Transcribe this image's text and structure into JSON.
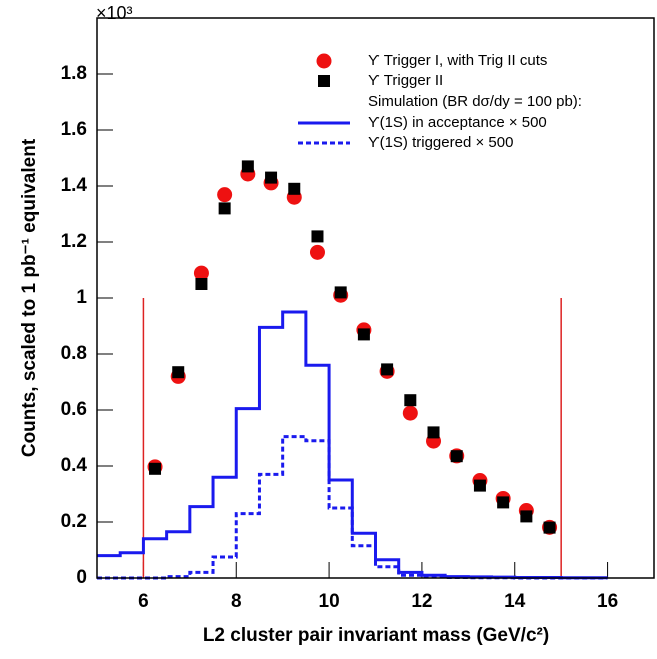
{
  "chart_data": {
    "type": "scatter",
    "multiplier": "×10³",
    "x_label": "L2 cluster pair invariant mass (GeV/c²)",
    "y_label": "Counts, scaled to 1 pb⁻¹ equivalent",
    "xlim": [
      5,
      17
    ],
    "xticks": [
      6,
      8,
      10,
      12,
      14,
      16
    ],
    "ylim": [
      0,
      2
    ],
    "yticks": [
      0,
      0.2,
      0.4,
      0.6,
      0.8,
      1,
      1.2,
      1.4,
      1.6,
      1.8
    ],
    "legend_heading": "Simulation (BR dσ/dy = 100 pb):",
    "series": [
      {
        "name": "ϒ Trigger I, with Trig II cuts",
        "style": "circle",
        "color": "#ee1111",
        "x": [
          6.25,
          6.75,
          7.25,
          7.75,
          8.25,
          8.75,
          9.25,
          9.75,
          10.25,
          10.75,
          11.25,
          11.75,
          12.25,
          12.75,
          13.25,
          13.75,
          14.25,
          14.75
        ],
        "values": [
          0.397,
          0.72,
          1.089,
          1.369,
          1.443,
          1.411,
          1.36,
          1.163,
          1.01,
          0.886,
          0.738,
          0.589,
          0.489,
          0.436,
          0.348,
          0.284,
          0.241,
          0.181
        ]
      },
      {
        "name": "ϒ Trigger II",
        "style": "square",
        "color": "#000000",
        "x": [
          6.25,
          6.75,
          7.25,
          7.75,
          8.25,
          8.75,
          9.25,
          9.75,
          10.25,
          10.75,
          11.25,
          11.75,
          12.25,
          12.75,
          13.25,
          13.75,
          14.25,
          14.75
        ],
        "values": [
          0.39,
          0.735,
          1.05,
          1.32,
          1.47,
          1.43,
          1.39,
          1.22,
          1.02,
          0.87,
          0.745,
          0.635,
          0.52,
          0.435,
          0.33,
          0.27,
          0.22,
          0.18
        ]
      },
      {
        "name": "ϒ(1S) in acceptance × 500",
        "style": "step",
        "dash": false,
        "color": "#1a1aee",
        "bins": [
          5,
          5.5,
          6,
          6.5,
          7,
          7.5,
          8,
          8.5,
          9,
          9.5,
          10,
          10.5,
          11,
          11.5,
          12,
          12.5,
          13,
          13.5,
          14,
          14.5,
          15,
          15.5,
          16
        ],
        "values": [
          0.08,
          0.09,
          0.14,
          0.165,
          0.255,
          0.36,
          0.605,
          0.895,
          0.95,
          0.76,
          0.35,
          0.16,
          0.065,
          0.02,
          0.01,
          0.005,
          0.004,
          0.003,
          0.002,
          0.002,
          0.001,
          0.001
        ]
      },
      {
        "name": "ϒ(1S) triggered × 500",
        "style": "step",
        "dash": true,
        "color": "#1a1aee",
        "bins": [
          5,
          5.5,
          6,
          6.5,
          7,
          7.5,
          8,
          8.5,
          9,
          9.5,
          10,
          10.5,
          11,
          11.5,
          12,
          12.5,
          13,
          13.5,
          14,
          14.5,
          15,
          15.5,
          16
        ],
        "values": [
          0,
          0,
          0,
          0.005,
          0.02,
          0.075,
          0.23,
          0.37,
          0.505,
          0.49,
          0.25,
          0.115,
          0.04,
          0.01,
          0.005,
          0.002,
          0.001,
          0.001,
          0,
          0,
          0,
          0
        ]
      }
    ],
    "vlines": [
      {
        "x": 6,
        "top": 1
      },
      {
        "x": 15,
        "top": 1
      }
    ],
    "vline_color": "#dd2222"
  }
}
